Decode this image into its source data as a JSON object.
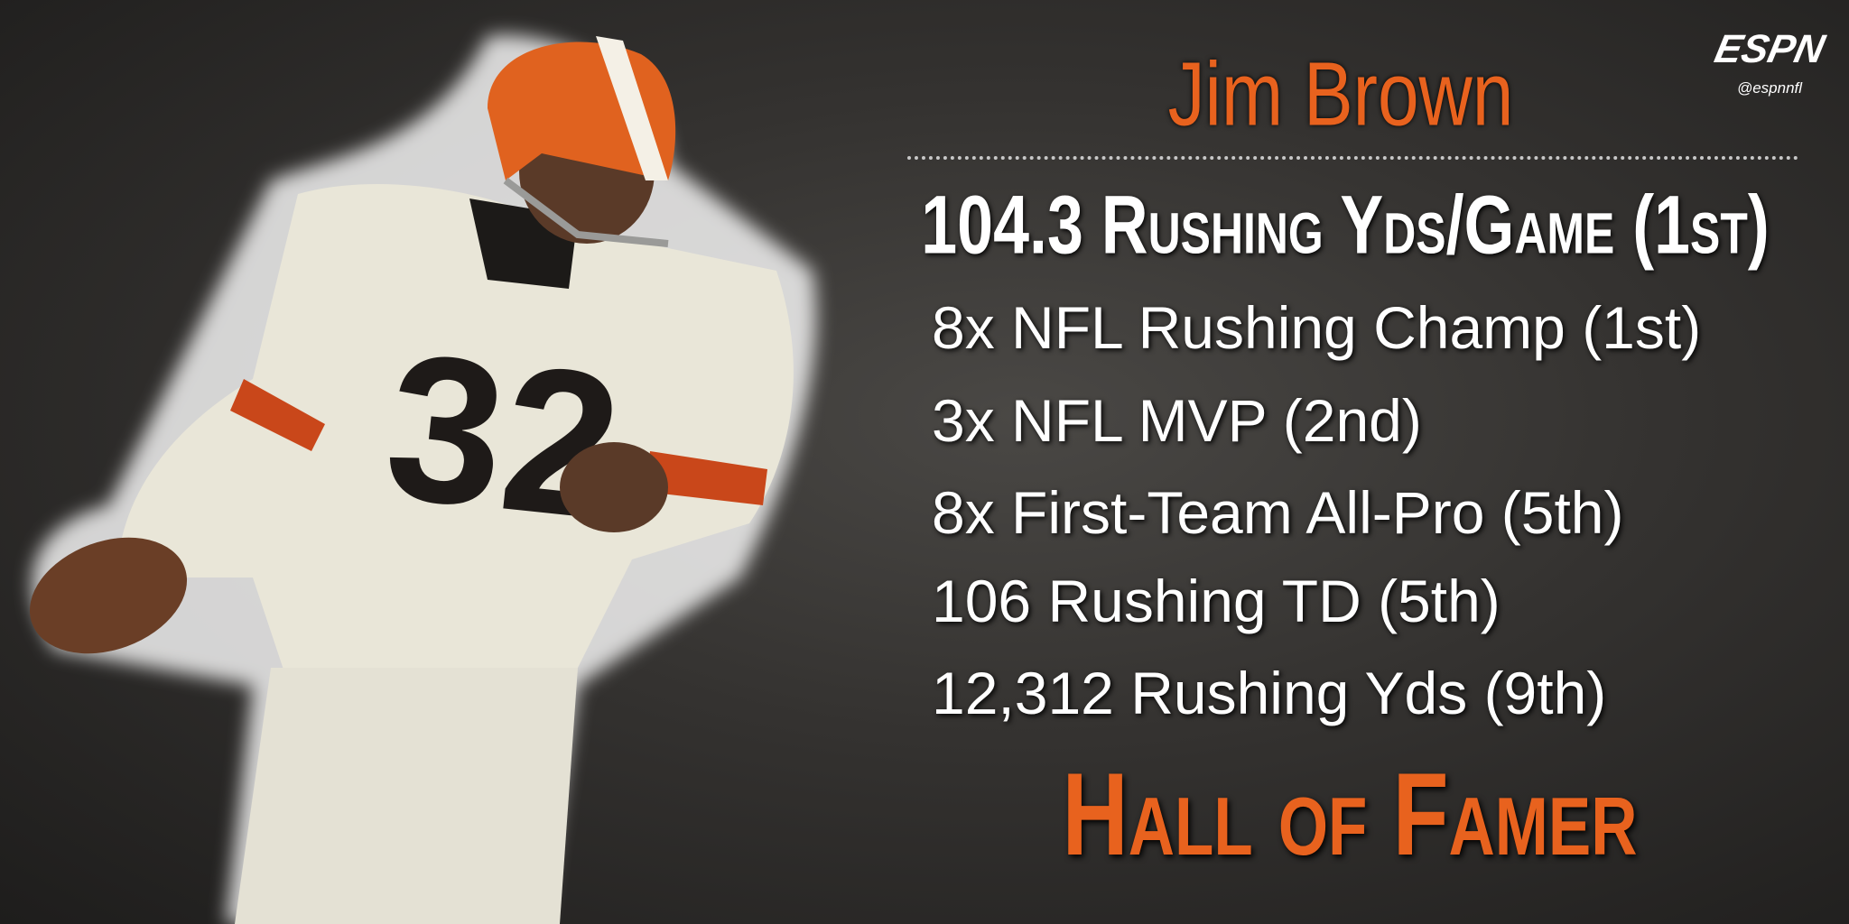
{
  "logo": {
    "brand": "ESPN",
    "handle": "@espnnfl"
  },
  "player": {
    "name": "Jim Brown"
  },
  "headline": "104.3 Rushing Yds/Game (1st)",
  "stats": [
    "8x NFL Rushing Champ (1st)",
    "3x NFL MVP (2nd)",
    "8x First-Team All-Pro (5th)",
    "106 Rushing TD (5th)",
    "12,312 Rushing Yds (9th)"
  ],
  "footer": "Hall of Famer"
}
